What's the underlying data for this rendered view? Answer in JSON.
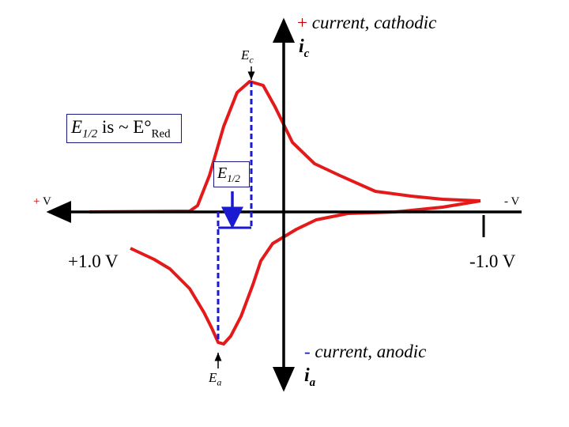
{
  "labels": {
    "cathodic_sign": "+",
    "cathodic_text": "current, cathodic",
    "cathodic_symbol": "i",
    "cathodic_sub": "c",
    "anodic_sign": "-",
    "anodic_text": "current, anodic",
    "anodic_symbol": "i",
    "anodic_sub": "a",
    "ec": "E",
    "ec_sub": "c",
    "ea": "E",
    "ea_sub": "a",
    "e_half_box": "E",
    "e_half_sub": "1/2",
    "statement_e": "E",
    "statement_sub": "1/2",
    "statement_mid": " is ~ E°",
    "statement_red": "Red",
    "plus_v_sign": "+",
    "plus_v": "V",
    "minus_v": "- V",
    "plus_one": "+1.0 V",
    "minus_one": "-1.0 V"
  },
  "colors": {
    "curve": "#e41a1a",
    "axis": "#000000",
    "guides": "#1a1ad0",
    "box_border": "#1a1a80"
  }
}
